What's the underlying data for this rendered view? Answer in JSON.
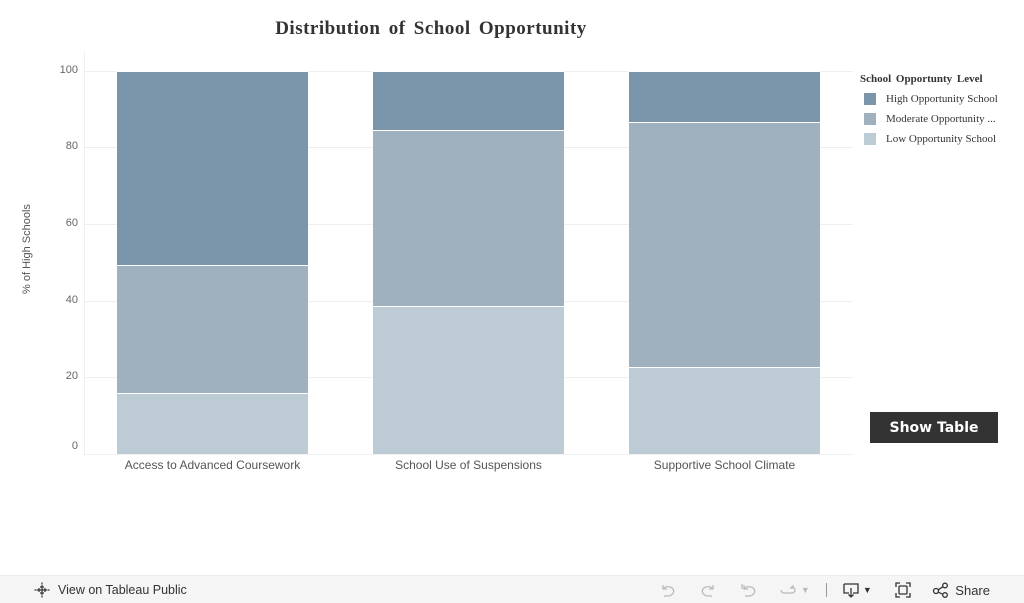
{
  "title": "Distribution of School Opportunity",
  "y_axis_label": "% of High Schools",
  "y_ticks": [
    "100",
    "80",
    "60",
    "40",
    "20",
    "0"
  ],
  "legend": {
    "title": "School Opportunty Level",
    "items": [
      {
        "label": "High Opportunity School",
        "color": "#7b96aa"
      },
      {
        "label": "Moderate Opportunity ...",
        "color": "#9fb1bf"
      },
      {
        "label": "Low Opportunity School",
        "color": "#bccbd4"
      }
    ]
  },
  "show_table_label": "Show Table",
  "toolbar": {
    "view_on_public": "View on Tableau Public",
    "share": "Share"
  },
  "chart_data": {
    "type": "bar",
    "stacked": true,
    "title": "Distribution of School Opportunity",
    "xlabel": "",
    "ylabel": "% of High Schools",
    "ylim": [
      0,
      100
    ],
    "yticks": [
      0,
      20,
      40,
      60,
      80,
      100
    ],
    "grid": true,
    "legend_position": "right",
    "legend_title": "School Opportunty Level",
    "categories": [
      "Access to Advanced Coursework",
      "School Use of Suspensions",
      "Supportive School Climate"
    ],
    "series": [
      {
        "name": "Low Opportunity School",
        "color": "#bccbd4",
        "values": [
          15.8,
          38.5,
          22.8
        ]
      },
      {
        "name": "Moderate Opportunity School",
        "color": "#9fb1bf",
        "values": [
          33.4,
          46.1,
          63.8
        ]
      },
      {
        "name": "High Opportunity School",
        "color": "#7b96aa",
        "values": [
          50.8,
          15.4,
          13.4
        ]
      }
    ]
  }
}
